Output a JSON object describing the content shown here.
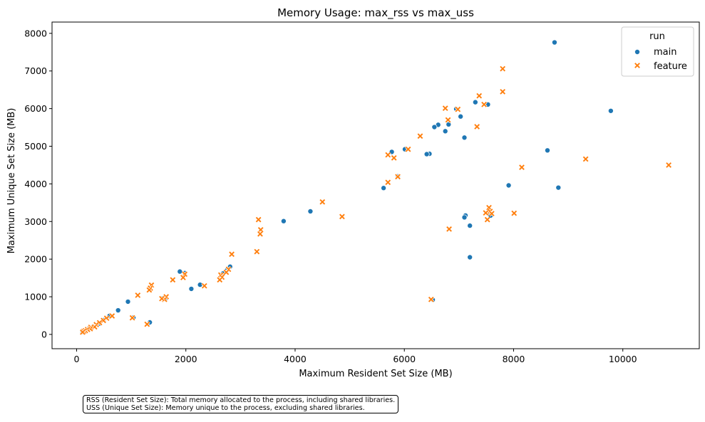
{
  "colors": {
    "main": "#1f77b4",
    "feature": "#ff7f0e"
  },
  "footnote": {
    "line1": "RSS (Resident Set Size): Total memory allocated to the process, including shared libraries.",
    "line2": "USS (Unique Set Size): Memory unique to the process, excluding shared libraries."
  },
  "chart_data": {
    "type": "scatter",
    "title": "Memory Usage: max_rss vs max_uss",
    "xlabel": "Maximum Resident Set Size (MB)",
    "ylabel": "Maximum Unique Set Size (MB)",
    "xlim": [
      -450,
      11400
    ],
    "ylim": [
      -380,
      8300
    ],
    "xticks": [
      0,
      2000,
      4000,
      6000,
      8000,
      10000
    ],
    "yticks": [
      0,
      1000,
      2000,
      3000,
      4000,
      5000,
      6000,
      7000,
      8000
    ],
    "grid": false,
    "legend": {
      "title": "run",
      "placement": "top-right"
    },
    "series": [
      {
        "name": "main",
        "marker": "circle",
        "points": [
          [
            8750,
            7760
          ],
          [
            9780,
            5940
          ],
          [
            7300,
            6170
          ],
          [
            7530,
            6110
          ],
          [
            6950,
            5990
          ],
          [
            7030,
            5790
          ],
          [
            6620,
            5570
          ],
          [
            6550,
            5510
          ],
          [
            6810,
            5580
          ],
          [
            6750,
            5400
          ],
          [
            7100,
            5230
          ],
          [
            8620,
            4890
          ],
          [
            6010,
            4920
          ],
          [
            5770,
            4850
          ],
          [
            6460,
            4800
          ],
          [
            6410,
            4790
          ],
          [
            5880,
            4200
          ],
          [
            5620,
            3890
          ],
          [
            7910,
            3960
          ],
          [
            8820,
            3900
          ],
          [
            7120,
            3160
          ],
          [
            7100,
            3110
          ],
          [
            7580,
            3160
          ],
          [
            7200,
            2890
          ],
          [
            7200,
            2050
          ],
          [
            6520,
            920
          ],
          [
            4280,
            3270
          ],
          [
            3790,
            3010
          ],
          [
            2810,
            1800
          ],
          [
            2750,
            1700
          ],
          [
            2680,
            1620
          ],
          [
            1890,
            1670
          ],
          [
            1980,
            1630
          ],
          [
            2260,
            1320
          ],
          [
            2100,
            1210
          ],
          [
            1620,
            940
          ],
          [
            1580,
            960
          ],
          [
            1340,
            320
          ],
          [
            940,
            870
          ],
          [
            760,
            640
          ],
          [
            1040,
            450
          ],
          [
            600,
            490
          ],
          [
            500,
            380
          ],
          [
            420,
            290
          ],
          [
            300,
            210
          ],
          [
            220,
            150
          ],
          [
            150,
            90
          ],
          [
            110,
            60
          ]
        ]
      },
      {
        "name": "feature",
        "marker": "x",
        "points": [
          [
            7800,
            7060
          ],
          [
            7800,
            6450
          ],
          [
            7370,
            6340
          ],
          [
            7460,
            6110
          ],
          [
            6750,
            6010
          ],
          [
            6980,
            5980
          ],
          [
            6800,
            5700
          ],
          [
            7330,
            5520
          ],
          [
            6290,
            5270
          ],
          [
            6070,
            4920
          ],
          [
            5700,
            4770
          ],
          [
            5810,
            4690
          ],
          [
            5880,
            4190
          ],
          [
            5700,
            4040
          ],
          [
            8150,
            4440
          ],
          [
            9320,
            4660
          ],
          [
            10840,
            4500
          ],
          [
            7550,
            3370
          ],
          [
            7570,
            3270
          ],
          [
            7490,
            3230
          ],
          [
            7600,
            3210
          ],
          [
            8010,
            3220
          ],
          [
            7520,
            3050
          ],
          [
            6820,
            2800
          ],
          [
            6490,
            930
          ],
          [
            4500,
            3520
          ],
          [
            4860,
            3130
          ],
          [
            3330,
            3050
          ],
          [
            3370,
            2780
          ],
          [
            3360,
            2670
          ],
          [
            3300,
            2200
          ],
          [
            2840,
            2130
          ],
          [
            2780,
            1730
          ],
          [
            2740,
            1650
          ],
          [
            2640,
            1580
          ],
          [
            2660,
            1520
          ],
          [
            2620,
            1450
          ],
          [
            2340,
            1290
          ],
          [
            1980,
            1600
          ],
          [
            1950,
            1510
          ],
          [
            1760,
            1450
          ],
          [
            1370,
            1310
          ],
          [
            1350,
            1230
          ],
          [
            1330,
            1180
          ],
          [
            1120,
            1040
          ],
          [
            1020,
            440
          ],
          [
            1290,
            270
          ],
          [
            1640,
            1000
          ],
          [
            1610,
            930
          ],
          [
            1560,
            950
          ],
          [
            650,
            490
          ],
          [
            550,
            430
          ],
          [
            490,
            370
          ],
          [
            420,
            310
          ],
          [
            360,
            260
          ],
          [
            330,
            200
          ],
          [
            260,
            190
          ],
          [
            250,
            150
          ],
          [
            200,
            130
          ],
          [
            160,
            100
          ],
          [
            130,
            80
          ],
          [
            110,
            60
          ]
        ]
      }
    ]
  }
}
